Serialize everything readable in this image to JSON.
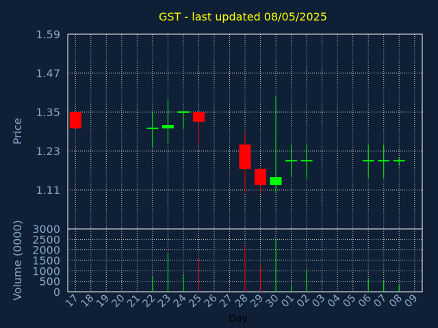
{
  "chart_data": {
    "type": "candlestick",
    "title": "GST - last updated 08/05/2025",
    "price_panel": {
      "ylabel": "Price",
      "ylim": [
        0.99,
        1.59
      ],
      "yticks": [
        "1.59",
        "1.47",
        "1.35",
        "1.23",
        "1.11"
      ],
      "grid": true
    },
    "volume_panel": {
      "ylabel": "Volume (0000)",
      "ylim": [
        0,
        3000
      ],
      "yticks": [
        "3000",
        "2500",
        "2000",
        "1500",
        "1000",
        "500",
        "0"
      ],
      "grid": true
    },
    "xlabel": "Day",
    "x_categories": [
      "17",
      "18",
      "19",
      "20",
      "21",
      "22",
      "23",
      "24",
      "25",
      "26",
      "27",
      "28",
      "29",
      "30",
      "01",
      "02",
      "03",
      "04",
      "05",
      "06",
      "07",
      "08",
      "09"
    ],
    "candles": [
      {
        "day": "17",
        "open": 1.35,
        "high": 1.35,
        "low": 1.3,
        "close": 1.3,
        "volume": 0
      },
      {
        "day": "22",
        "open": 1.3,
        "high": 1.35,
        "low": 1.24,
        "close": 1.3,
        "volume": 700
      },
      {
        "day": "23",
        "open": 1.3,
        "high": 1.39,
        "low": 1.255,
        "close": 1.31,
        "volume": 1850
      },
      {
        "day": "24",
        "open": 1.35,
        "high": 1.35,
        "low": 1.3,
        "close": 1.35,
        "volume": 820
      },
      {
        "day": "25",
        "open": 1.35,
        "high": 1.35,
        "low": 1.25,
        "close": 1.32,
        "volume": 1600
      },
      {
        "day": "28",
        "open": 1.25,
        "high": 1.285,
        "low": 1.1,
        "close": 1.175,
        "volume": 2200
      },
      {
        "day": "29",
        "open": 1.175,
        "high": 1.18,
        "low": 1.1,
        "close": 1.125,
        "volume": 1250
      },
      {
        "day": "30",
        "open": 1.125,
        "high": 1.4,
        "low": 1.1,
        "close": 1.15,
        "volume": 2550
      },
      {
        "day": "01",
        "open": 1.2,
        "high": 1.25,
        "low": 1.15,
        "close": 1.2,
        "volume": 300
      },
      {
        "day": "02",
        "open": 1.2,
        "high": 1.25,
        "low": 1.145,
        "close": 1.2,
        "volume": 1050
      },
      {
        "day": "06",
        "open": 1.2,
        "high": 1.25,
        "low": 1.145,
        "close": 1.2,
        "volume": 650
      },
      {
        "day": "07",
        "open": 1.2,
        "high": 1.25,
        "low": 1.145,
        "close": 1.2,
        "volume": 500
      },
      {
        "day": "08",
        "open": 1.2,
        "high": 1.21,
        "low": 1.185,
        "close": 1.2,
        "volume": 320
      }
    ],
    "colors": {
      "background": "#0f2036",
      "plot_border": "#ffffff",
      "grid": "#c8c8c8",
      "axis_text": "#8aa6c8",
      "title": "#ffff00",
      "up": "#00ff00",
      "down": "#ff0000"
    }
  }
}
